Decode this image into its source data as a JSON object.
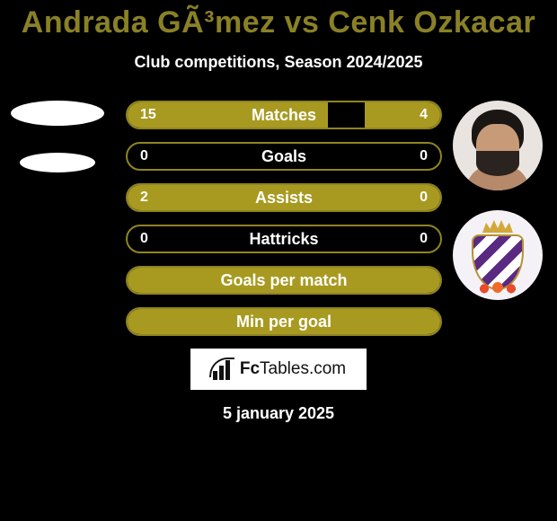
{
  "title_color": "#8a8126",
  "title": "Andrada GÃ³mez vs Cenk Ozkacar",
  "subtitle": "Club competitions, Season 2024/2025",
  "stat_rows": [
    {
      "label": "Matches",
      "left": "15",
      "right": "4",
      "fill_color": "#a89a21",
      "border_color": "#8f8422",
      "left_width_pct": 64,
      "right_width_pct": 24
    },
    {
      "label": "Goals",
      "left": "0",
      "right": "0",
      "fill_color": "#a89a21",
      "border_color": "#8f8422",
      "left_width_pct": 0,
      "right_width_pct": 0
    },
    {
      "label": "Assists",
      "left": "2",
      "right": "0",
      "fill_color": "#a89a21",
      "border_color": "#8f8422",
      "left_width_pct": 100,
      "right_width_pct": 0
    },
    {
      "label": "Hattricks",
      "left": "0",
      "right": "0",
      "fill_color": "#a89a21",
      "border_color": "#8f8422",
      "left_width_pct": 0,
      "right_width_pct": 0
    },
    {
      "label": "Goals per match",
      "left": "",
      "right": "",
      "fill_color": "#a89a21",
      "border_color": "#8f8422",
      "left_width_pct": 100,
      "right_width_pct": 0
    },
    {
      "label": "Min per goal",
      "left": "",
      "right": "",
      "fill_color": "#a89a21",
      "border_color": "#8f8422",
      "left_width_pct": 100,
      "right_width_pct": 0
    }
  ],
  "branding_bold": "Fc",
  "branding_rest": "Tables.com",
  "date": "5 january 2025",
  "right_player_icon": "player-avatar",
  "right_badge_icon": "club-crest"
}
